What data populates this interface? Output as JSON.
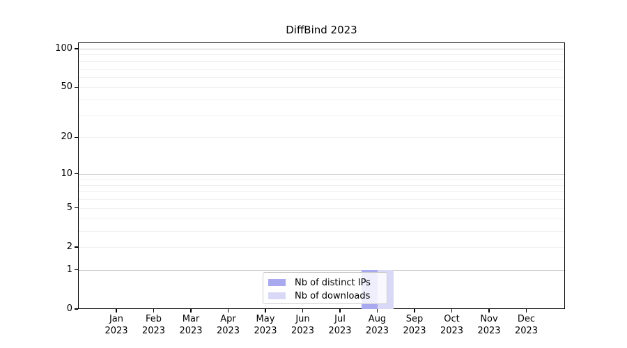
{
  "figure": {
    "background": "#ffffff"
  },
  "chart_data": {
    "type": "bar",
    "title": "DiffBind 2023",
    "categories": [
      "Jan 2023",
      "Feb 2023",
      "Mar 2023",
      "Apr 2023",
      "May 2023",
      "Jun 2023",
      "Jul 2023",
      "Aug 2023",
      "Sep 2023",
      "Oct 2023",
      "Nov 2023",
      "Dec 2023"
    ],
    "x_tick_month_labels": [
      "Jan",
      "Feb",
      "Mar",
      "Apr",
      "May",
      "Jun",
      "Jul",
      "Aug",
      "Sep",
      "Oct",
      "Nov",
      "Dec"
    ],
    "x_tick_year_label": "2023",
    "series": [
      {
        "name": "Nb of distinct IPs",
        "color": "#a9a9ef",
        "values": [
          0,
          0,
          0,
          0,
          0,
          0,
          0,
          1,
          0,
          0,
          0,
          0
        ]
      },
      {
        "name": "Nb of downloads",
        "color": "#d9d9f7",
        "values": [
          0,
          0,
          0,
          0,
          0,
          0,
          0,
          1,
          0,
          0,
          0,
          0
        ]
      }
    ],
    "xlabel": "",
    "ylabel": "",
    "y_axis": {
      "scale": "log1p",
      "tick_values": [
        0,
        1,
        2,
        5,
        10,
        20,
        50,
        100
      ],
      "tick_labels": [
        "0",
        "1",
        "2",
        "5",
        "10",
        "20",
        "50",
        "100"
      ],
      "major_gridlines": [
        1,
        10,
        100
      ],
      "minor_gridlines": [
        2,
        3,
        4,
        5,
        6,
        7,
        8,
        9,
        20,
        30,
        40,
        50,
        60,
        70,
        80,
        90
      ],
      "ylim": [
        0,
        112
      ]
    },
    "grid": "horizontal",
    "legend": {
      "position": "lower center",
      "entries": [
        "Nb of distinct IPs",
        "Nb of downloads"
      ]
    },
    "colors": {
      "major_grid": "#cbcbcb",
      "minor_grid": "#f0f0f0",
      "axis": "#000000",
      "legend_border": "#cccccc",
      "text": "#000000"
    }
  }
}
